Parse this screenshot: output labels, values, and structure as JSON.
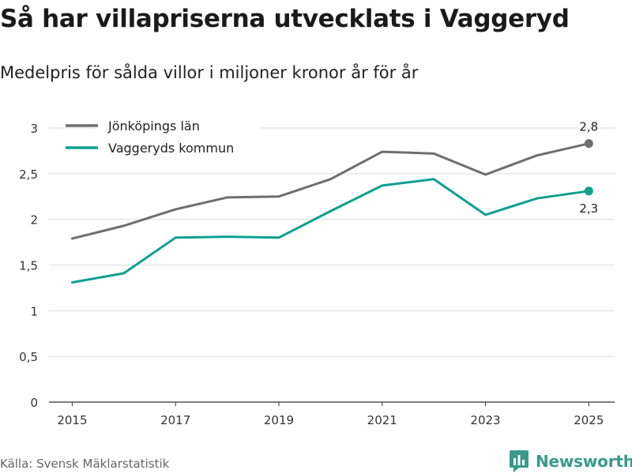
{
  "title": "Så har villapriserna utvecklats i Vaggeryd",
  "subtitle": "Medelpris för sålda villor i miljoner kronor år för år",
  "source": "Källa: Svensk Mäklarstatistik",
  "brand": "Newsworthy",
  "icons": {
    "brand": "bar-chart-icon"
  },
  "colors": {
    "lan": "#6e6e6e",
    "kommun": "#0f9f93",
    "grid": "#dddddd",
    "axis": "#333333",
    "brand": "#3a9a8c"
  },
  "chart_data": {
    "type": "line",
    "x": [
      2015,
      2016,
      2017,
      2018,
      2019,
      2020,
      2021,
      2022,
      2023,
      2024,
      2025
    ],
    "xticks": [
      "2015",
      "2017",
      "2019",
      "2021",
      "2023",
      "2025"
    ],
    "yticks": [
      "0",
      "0,5",
      "1",
      "1,5",
      "2",
      "2,5",
      "3"
    ],
    "ylim": [
      0,
      3
    ],
    "xlim": [
      2014.55,
      2025.5
    ],
    "legend_position": "top-left",
    "series": [
      {
        "name": "Jönköpings län",
        "values": [
          1.79,
          1.93,
          2.11,
          2.24,
          2.25,
          2.44,
          2.74,
          2.72,
          2.49,
          2.7,
          2.83
        ],
        "end_label": "2,8"
      },
      {
        "name": "Vaggeryds kommun",
        "values": [
          1.31,
          1.41,
          1.8,
          1.81,
          1.8,
          2.09,
          2.37,
          2.44,
          2.05,
          2.23,
          2.31
        ],
        "end_label": "2,3"
      }
    ]
  }
}
